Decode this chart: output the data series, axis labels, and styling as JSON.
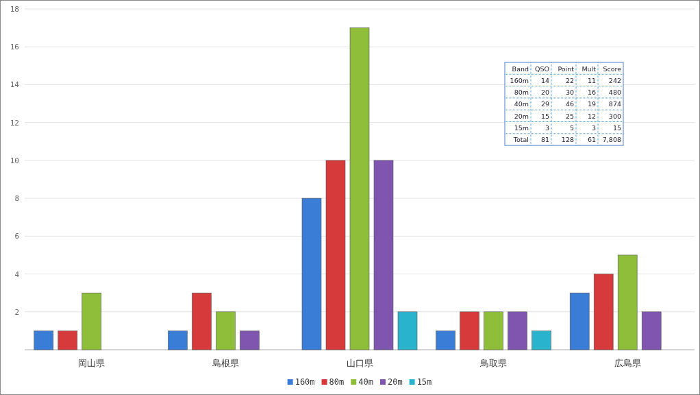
{
  "chart_data": [
    {
      "type": "bar",
      "categories": [
        "岡山県",
        "島根県",
        "山口県",
        "鳥取県",
        "広島県"
      ],
      "series": [
        {
          "name": "160m",
          "color": "#3a7dd6",
          "values": [
            1,
            1,
            8,
            1,
            3
          ]
        },
        {
          "name": "80m",
          "color": "#d63a3a",
          "values": [
            1,
            3,
            10,
            2,
            4
          ]
        },
        {
          "name": "40m",
          "color": "#8fbf3a",
          "values": [
            3,
            2,
            17,
            2,
            5
          ]
        },
        {
          "name": "20m",
          "color": "#8055b0",
          "values": [
            null,
            1,
            10,
            2,
            2
          ]
        },
        {
          "name": "15m",
          "color": "#2ab3cc",
          "values": [
            null,
            null,
            2,
            1,
            null
          ]
        }
      ],
      "ylim": [
        0,
        18
      ],
      "yticks": [
        {
          "value": 0,
          "label": null
        },
        2,
        4,
        6,
        8,
        10,
        12,
        14,
        16,
        18
      ],
      "grid": "y",
      "legend": "bottom"
    },
    {
      "type": "other",
      "annotations": [
        "Band",
        "QSO",
        "Point",
        "Mult",
        "Score",
        "160m",
        "14",
        "22",
        "11",
        "242",
        "80m",
        "20",
        "30",
        "16",
        "480",
        "40m",
        "29",
        "46",
        "19",
        "874",
        "20m",
        "15",
        "25",
        "12",
        "300",
        "15m",
        "3",
        "5",
        "3",
        "15",
        "Total",
        "81",
        "128",
        "61",
        "7,808"
      ]
    }
  ]
}
